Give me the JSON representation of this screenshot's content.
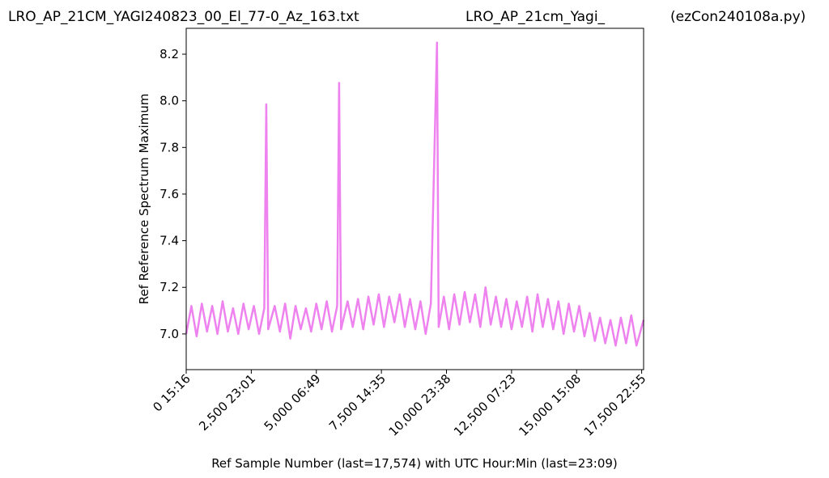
{
  "chart_data": {
    "type": "line",
    "titles": [
      "LRO_AP_21CM_YAGI240823_00_El_77-0_Az_163.txt",
      "LRO_AP_21cm_Yagi_",
      "(ezCon240108a.py)"
    ],
    "x_label": "Ref Sample Number (last=17,574) with UTC Hour:Min (last=23:09)",
    "y_label": "Ref Reference Spectrum Maximum",
    "color": "#ee82ee",
    "x": [
      0,
      200,
      400,
      600,
      800,
      1000,
      1200,
      1400,
      1600,
      1800,
      2000,
      2200,
      2400,
      2600,
      2800,
      3000,
      3077,
      3150,
      3400,
      3600,
      3800,
      4000,
      4200,
      4400,
      4600,
      4800,
      5000,
      5200,
      5400,
      5600,
      5800,
      5875,
      5950,
      6200,
      6400,
      6600,
      6800,
      7000,
      7200,
      7400,
      7600,
      7800,
      8000,
      8200,
      8400,
      8600,
      8800,
      9000,
      9200,
      9400,
      9636,
      9700,
      9900,
      10100,
      10300,
      10500,
      10700,
      10900,
      11100,
      11300,
      11500,
      11700,
      11900,
      12100,
      12300,
      12500,
      12700,
      12900,
      13100,
      13300,
      13500,
      13700,
      13900,
      14100,
      14300,
      14500,
      14700,
      14900,
      15100,
      15300,
      15500,
      15700,
      15900,
      16100,
      16300,
      16500,
      16700,
      16900,
      17100,
      17300,
      17574
    ],
    "values": [
      7.0,
      7.12,
      6.99,
      7.13,
      7.01,
      7.12,
      7.0,
      7.14,
      7.01,
      7.11,
      7.0,
      7.13,
      7.02,
      7.12,
      7.0,
      7.11,
      7.985,
      7.02,
      7.12,
      7.01,
      7.13,
      6.98,
      7.12,
      7.02,
      7.11,
      7.01,
      7.13,
      7.02,
      7.14,
      7.01,
      7.12,
      8.077,
      7.02,
      7.14,
      7.03,
      7.15,
      7.02,
      7.16,
      7.04,
      7.17,
      7.03,
      7.16,
      7.05,
      7.17,
      7.03,
      7.15,
      7.02,
      7.14,
      7.0,
      7.13,
      8.25,
      7.03,
      7.16,
      7.02,
      7.17,
      7.04,
      7.18,
      7.05,
      7.17,
      7.03,
      7.2,
      7.04,
      7.16,
      7.03,
      7.15,
      7.02,
      7.14,
      7.03,
      7.16,
      7.01,
      7.17,
      7.03,
      7.15,
      7.02,
      7.14,
      7.0,
      7.13,
      7.01,
      7.12,
      6.99,
      7.09,
      6.97,
      7.07,
      6.96,
      7.06,
      6.95,
      7.07,
      6.96,
      7.08,
      6.95,
      7.06
    ],
    "xlim": [
      0,
      17574
    ],
    "ylim": [
      6.847,
      8.311
    ],
    "xticks": [
      {
        "value": 0,
        "label": "0  15:16"
      },
      {
        "value": 2500,
        "label": "2,500  23:01"
      },
      {
        "value": 5000,
        "label": "5,000  06:49"
      },
      {
        "value": 7500,
        "label": "7,500  14:35"
      },
      {
        "value": 10000,
        "label": "10,000  23:38"
      },
      {
        "value": 12500,
        "label": "12,500  07:23"
      },
      {
        "value": 15000,
        "label": "15,000  15:08"
      },
      {
        "value": 17500,
        "label": "17,500  22:55"
      }
    ],
    "yticks": [
      {
        "value": 7.0,
        "label": "7.0"
      },
      {
        "value": 7.2,
        "label": "7.2"
      },
      {
        "value": 7.4,
        "label": "7.4"
      },
      {
        "value": 7.6,
        "label": "7.6"
      },
      {
        "value": 7.8,
        "label": "7.8"
      },
      {
        "value": 8.0,
        "label": "8.0"
      },
      {
        "value": 8.2,
        "label": "8.2"
      }
    ]
  }
}
